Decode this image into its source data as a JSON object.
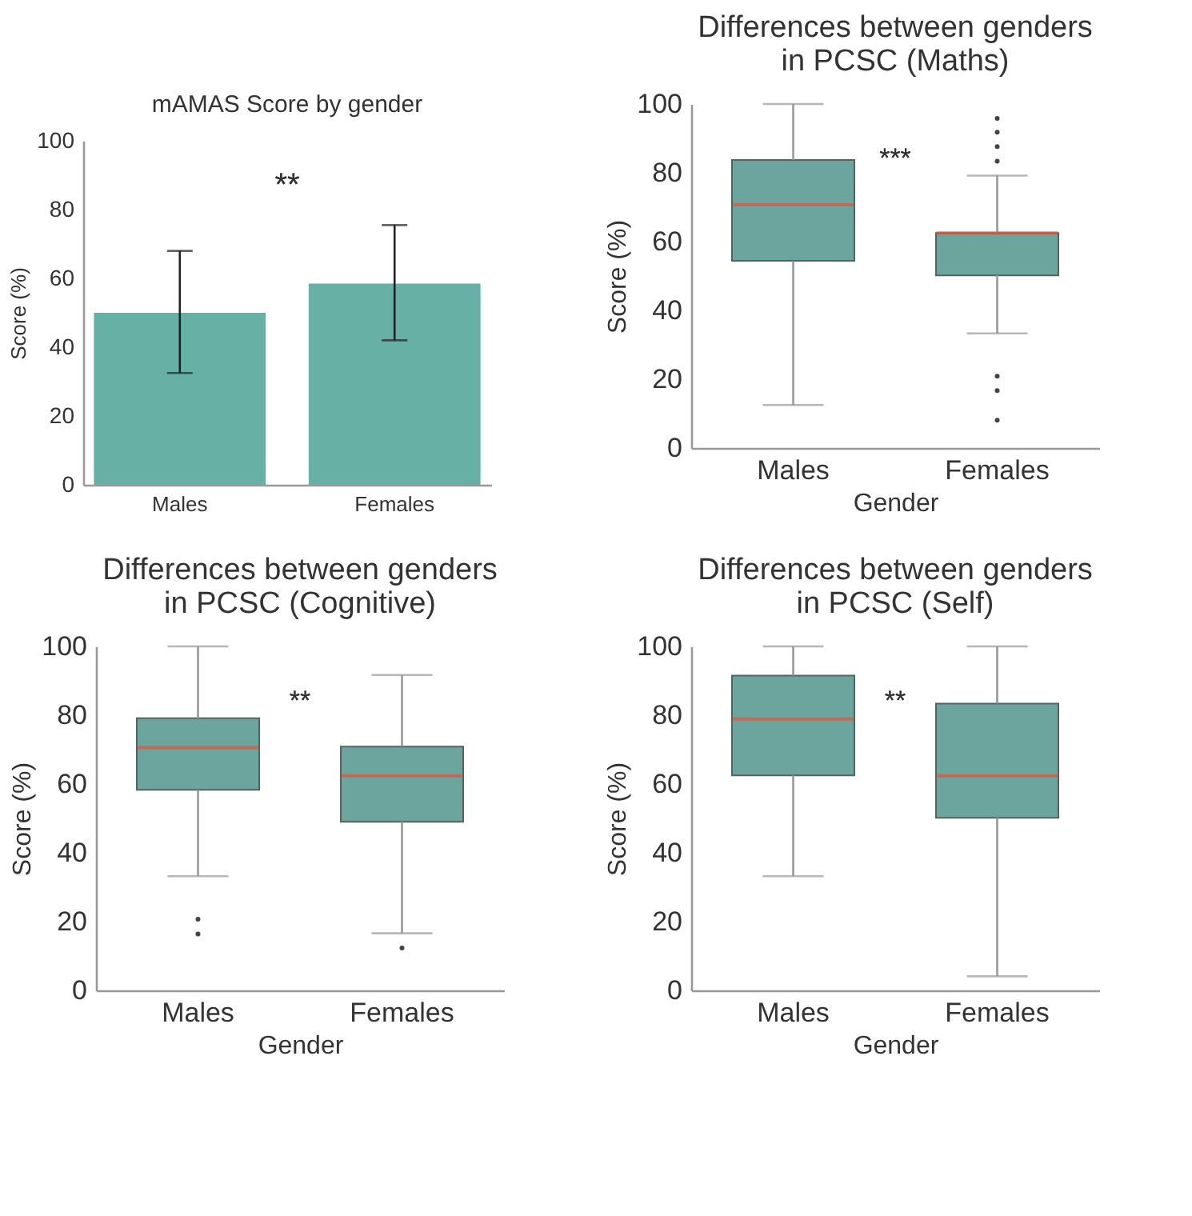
{
  "chart_data": [
    {
      "type": "bar",
      "title": "mAMAS Score by gender",
      "ylabel": "Score (%)",
      "categories": [
        "Males",
        "Females"
      ],
      "values": [
        50,
        58.5
      ],
      "errors": [
        [
          32.5,
          68
        ],
        [
          42,
          75.5
        ]
      ],
      "color": "#66b0a6",
      "ylim": [
        0,
        100
      ],
      "yticks": [
        0,
        20,
        40,
        60,
        80,
        100
      ],
      "annotations": [
        "**"
      ],
      "grid": false
    },
    {
      "type": "box",
      "title": "Differences between genders\nin PCSC (Maths)",
      "xlabel": "Gender",
      "ylabel": "Score (%)",
      "categories": [
        "Males",
        "Females"
      ],
      "ylim": [
        0,
        100
      ],
      "yticks": [
        0,
        20,
        40,
        60,
        80,
        100
      ],
      "annotations": [
        "***"
      ],
      "grid": false,
      "series": [
        {
          "color": "#6ba59e",
          "boxes": [
            {
              "low": 12.5,
              "q1": 54.4,
              "median": 70.7,
              "q3": 83.7,
              "high": 100
            },
            {
              "low": 33.3,
              "q1": 50.2,
              "median": 62.5,
              "q3": 62.5,
              "high": 79.2,
              "outliers": [
                95.8,
                91.8,
                87.6,
                83.4,
                20.9,
                16.7,
                8.1
              ]
            }
          ]
        }
      ]
    },
    {
      "type": "box",
      "title": "Differences between genders\nin PCSC (Cognitive)",
      "xlabel": "Gender",
      "ylabel": "Score (%)",
      "categories": [
        "Males",
        "Females"
      ],
      "ylim": [
        0,
        100
      ],
      "yticks": [
        0,
        20,
        40,
        60,
        80,
        100
      ],
      "annotations": [
        "**"
      ],
      "grid": false,
      "series": [
        {
          "color": "#6ba59e",
          "boxes": [
            {
              "low": 33.2,
              "q1": 58.3,
              "median": 70.6,
              "q3": 79.1,
              "high": 100,
              "outliers": [
                20.7,
                16.4
              ]
            },
            {
              "low": 16.6,
              "q1": 49,
              "median": 62.4,
              "q3": 70.9,
              "high": 91.7,
              "outliers": [
                12.3
              ]
            }
          ]
        }
      ]
    },
    {
      "type": "box",
      "title": "Differences between genders\nin PCSC (Self)",
      "xlabel": "Gender",
      "ylabel": "Score (%)",
      "categories": [
        "Males",
        "Females"
      ],
      "ylim": [
        0,
        100
      ],
      "yticks": [
        0,
        20,
        40,
        60,
        80,
        100
      ],
      "annotations": [
        "**"
      ],
      "grid": false,
      "series": [
        {
          "color": "#6ba59e",
          "boxes": [
            {
              "low": 33.2,
              "q1": 62.5,
              "median": 78.9,
              "q3": 91.5,
              "high": 100
            },
            {
              "low": 4.1,
              "q1": 50.2,
              "median": 62.4,
              "q3": 83.4,
              "high": 100
            }
          ]
        }
      ]
    }
  ]
}
